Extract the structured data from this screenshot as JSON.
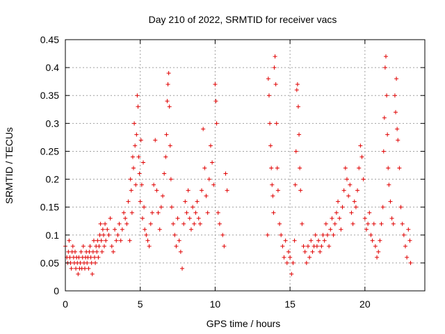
{
  "chart_data": {
    "type": "scatter",
    "title": "Day 210 of 2022, SRMTID for receiver vacs",
    "xlabel": "GPS time / hours",
    "ylabel": "SRMTID / TECUs",
    "xlim": [
      0,
      24
    ],
    "ylim": [
      0,
      0.45
    ],
    "xticks": [
      0,
      5,
      10,
      15,
      20
    ],
    "yticks": [
      0,
      0.05,
      0.1,
      0.15,
      0.2,
      0.25,
      0.3,
      0.35,
      0.4,
      0.45
    ],
    "grid": true,
    "marker": "+",
    "color": "#e00000",
    "series": [
      {
        "name": "SRMTID",
        "points": [
          [
            0.0,
            0.08
          ],
          [
            0.1,
            0.06
          ],
          [
            0.15,
            0.05
          ],
          [
            0.2,
            0.07
          ],
          [
            0.25,
            0.09
          ],
          [
            0.3,
            0.06
          ],
          [
            0.35,
            0.05
          ],
          [
            0.4,
            0.04
          ],
          [
            0.45,
            0.07
          ],
          [
            0.5,
            0.08
          ],
          [
            0.55,
            0.06
          ],
          [
            0.6,
            0.05
          ],
          [
            0.65,
            0.07
          ],
          [
            0.7,
            0.04
          ],
          [
            0.75,
            0.06
          ],
          [
            0.8,
            0.05
          ],
          [
            0.85,
            0.03
          ],
          [
            0.9,
            0.06
          ],
          [
            0.95,
            0.04
          ],
          [
            1.0,
            0.05
          ],
          [
            1.05,
            0.07
          ],
          [
            1.1,
            0.04
          ],
          [
            1.15,
            0.06
          ],
          [
            1.2,
            0.08
          ],
          [
            1.25,
            0.05
          ],
          [
            1.3,
            0.04
          ],
          [
            1.35,
            0.06
          ],
          [
            1.4,
            0.07
          ],
          [
            1.45,
            0.05
          ],
          [
            1.5,
            0.06
          ],
          [
            1.55,
            0.04
          ],
          [
            1.6,
            0.07
          ],
          [
            1.65,
            0.08
          ],
          [
            1.7,
            0.06
          ],
          [
            1.75,
            0.05
          ],
          [
            1.8,
            0.03
          ],
          [
            1.85,
            0.07
          ],
          [
            1.9,
            0.09
          ],
          [
            1.95,
            0.06
          ],
          [
            2.0,
            0.05
          ],
          [
            2.05,
            0.08
          ],
          [
            2.1,
            0.07
          ],
          [
            2.15,
            0.09
          ],
          [
            2.2,
            0.06
          ],
          [
            2.25,
            0.08
          ],
          [
            2.3,
            0.1
          ],
          [
            2.35,
            0.12
          ],
          [
            2.4,
            0.09
          ],
          [
            2.45,
            0.07
          ],
          [
            2.5,
            0.11
          ],
          [
            2.55,
            0.1
          ],
          [
            2.6,
            0.08
          ],
          [
            2.65,
            0.12
          ],
          [
            2.7,
            0.09
          ],
          [
            2.8,
            0.11
          ],
          [
            2.9,
            0.1
          ],
          [
            3.0,
            0.13
          ],
          [
            3.1,
            0.08
          ],
          [
            3.2,
            0.07
          ],
          [
            3.3,
            0.11
          ],
          [
            3.4,
            0.09
          ],
          [
            3.5,
            0.1
          ],
          [
            3.6,
            0.12
          ],
          [
            3.7,
            0.09
          ],
          [
            3.8,
            0.11
          ],
          [
            3.9,
            0.14
          ],
          [
            4.0,
            0.13
          ],
          [
            4.1,
            0.12
          ],
          [
            4.2,
            0.16
          ],
          [
            4.3,
            0.09
          ],
          [
            4.35,
            0.2
          ],
          [
            4.4,
            0.18
          ],
          [
            4.45,
            0.14
          ],
          [
            4.5,
            0.24
          ],
          [
            4.55,
            0.22
          ],
          [
            4.6,
            0.3
          ],
          [
            4.65,
            0.26
          ],
          [
            4.7,
            0.19
          ],
          [
            4.75,
            0.28
          ],
          [
            4.8,
            0.35
          ],
          [
            4.85,
            0.33
          ],
          [
            4.9,
            0.24
          ],
          [
            4.95,
            0.21
          ],
          [
            5.0,
            0.16
          ],
          [
            5.05,
            0.27
          ],
          [
            5.1,
            0.19
          ],
          [
            5.15,
            0.13
          ],
          [
            5.2,
            0.23
          ],
          [
            5.25,
            0.15
          ],
          [
            5.3,
            0.11
          ],
          [
            5.4,
            0.1
          ],
          [
            5.5,
            0.09
          ],
          [
            5.6,
            0.08
          ],
          [
            5.7,
            0.12
          ],
          [
            5.8,
            0.14
          ],
          [
            5.9,
            0.19
          ],
          [
            6.0,
            0.27
          ],
          [
            6.1,
            0.18
          ],
          [
            6.2,
            0.14
          ],
          [
            6.3,
            0.11
          ],
          [
            6.4,
            0.15
          ],
          [
            6.5,
            0.17
          ],
          [
            6.6,
            0.21
          ],
          [
            6.7,
            0.24
          ],
          [
            6.75,
            0.28
          ],
          [
            6.8,
            0.34
          ],
          [
            6.85,
            0.37
          ],
          [
            6.9,
            0.39
          ],
          [
            6.95,
            0.33
          ],
          [
            7.0,
            0.26
          ],
          [
            7.05,
            0.2
          ],
          [
            7.1,
            0.15
          ],
          [
            7.2,
            0.12
          ],
          [
            7.3,
            0.1
          ],
          [
            7.4,
            0.08
          ],
          [
            7.5,
            0.13
          ],
          [
            7.6,
            0.09
          ],
          [
            7.7,
            0.07
          ],
          [
            7.8,
            0.04
          ],
          [
            7.9,
            0.12
          ],
          [
            8.0,
            0.16
          ],
          [
            8.1,
            0.14
          ],
          [
            8.2,
            0.18
          ],
          [
            8.3,
            0.13
          ],
          [
            8.4,
            0.11
          ],
          [
            8.5,
            0.15
          ],
          [
            8.6,
            0.12
          ],
          [
            8.7,
            0.14
          ],
          [
            8.8,
            0.16
          ],
          [
            8.9,
            0.13
          ],
          [
            9.0,
            0.12
          ],
          [
            9.1,
            0.18
          ],
          [
            9.2,
            0.29
          ],
          [
            9.3,
            0.22
          ],
          [
            9.4,
            0.17
          ],
          [
            9.5,
            0.14
          ],
          [
            9.6,
            0.2
          ],
          [
            9.7,
            0.26
          ],
          [
            9.8,
            0.23
          ],
          [
            9.9,
            0.19
          ],
          [
            10.0,
            0.37
          ],
          [
            10.05,
            0.34
          ],
          [
            10.1,
            0.3
          ],
          [
            10.2,
            0.14
          ],
          [
            10.3,
            0.12
          ],
          [
            10.5,
            0.1
          ],
          [
            10.6,
            0.08
          ],
          [
            10.7,
            0.21
          ],
          [
            10.8,
            0.18
          ],
          [
            13.5,
            0.1
          ],
          [
            13.55,
            0.38
          ],
          [
            13.6,
            0.35
          ],
          [
            13.65,
            0.3
          ],
          [
            13.7,
            0.26
          ],
          [
            13.75,
            0.22
          ],
          [
            13.8,
            0.19
          ],
          [
            13.85,
            0.17
          ],
          [
            13.9,
            0.14
          ],
          [
            13.95,
            0.4
          ],
          [
            14.0,
            0.42
          ],
          [
            14.05,
            0.37
          ],
          [
            14.1,
            0.3
          ],
          [
            14.15,
            0.22
          ],
          [
            14.2,
            0.18
          ],
          [
            14.3,
            0.12
          ],
          [
            14.4,
            0.1
          ],
          [
            14.5,
            0.08
          ],
          [
            14.6,
            0.06
          ],
          [
            14.7,
            0.09
          ],
          [
            14.8,
            0.05
          ],
          [
            14.9,
            0.07
          ],
          [
            15.0,
            0.06
          ],
          [
            15.1,
            0.03
          ],
          [
            15.2,
            0.05
          ],
          [
            15.3,
            0.09
          ],
          [
            15.35,
            0.19
          ],
          [
            15.4,
            0.25
          ],
          [
            15.45,
            0.36
          ],
          [
            15.5,
            0.37
          ],
          [
            15.55,
            0.33
          ],
          [
            15.6,
            0.28
          ],
          [
            15.65,
            0.22
          ],
          [
            15.7,
            0.18
          ],
          [
            15.8,
            0.12
          ],
          [
            15.9,
            0.08
          ],
          [
            16.0,
            0.07
          ],
          [
            16.1,
            0.05
          ],
          [
            16.2,
            0.08
          ],
          [
            16.3,
            0.06
          ],
          [
            16.4,
            0.09
          ],
          [
            16.5,
            0.07
          ],
          [
            16.6,
            0.08
          ],
          [
            16.7,
            0.1
          ],
          [
            16.8,
            0.08
          ],
          [
            16.9,
            0.09
          ],
          [
            17.0,
            0.07
          ],
          [
            17.1,
            0.08
          ],
          [
            17.2,
            0.1
          ],
          [
            17.3,
            0.09
          ],
          [
            17.4,
            0.12
          ],
          [
            17.5,
            0.1
          ],
          [
            17.6,
            0.08
          ],
          [
            17.7,
            0.11
          ],
          [
            17.8,
            0.13
          ],
          [
            17.9,
            0.1
          ],
          [
            18.0,
            0.12
          ],
          [
            18.1,
            0.14
          ],
          [
            18.2,
            0.16
          ],
          [
            18.3,
            0.13
          ],
          [
            18.4,
            0.11
          ],
          [
            18.5,
            0.15
          ],
          [
            18.6,
            0.18
          ],
          [
            18.7,
            0.22
          ],
          [
            18.8,
            0.2
          ],
          [
            18.9,
            0.17
          ],
          [
            19.0,
            0.19
          ],
          [
            19.1,
            0.14
          ],
          [
            19.2,
            0.12
          ],
          [
            19.3,
            0.16
          ],
          [
            19.4,
            0.15
          ],
          [
            19.5,
            0.18
          ],
          [
            19.6,
            0.22
          ],
          [
            19.7,
            0.26
          ],
          [
            19.8,
            0.24
          ],
          [
            19.9,
            0.2
          ],
          [
            20.0,
            0.13
          ],
          [
            20.1,
            0.11
          ],
          [
            20.2,
            0.12
          ],
          [
            20.3,
            0.14
          ],
          [
            20.4,
            0.1
          ],
          [
            20.5,
            0.09
          ],
          [
            20.6,
            0.12
          ],
          [
            20.7,
            0.08
          ],
          [
            20.8,
            0.06
          ],
          [
            20.9,
            0.07
          ],
          [
            21.0,
            0.09
          ],
          [
            21.1,
            0.12
          ],
          [
            21.2,
            0.15
          ],
          [
            21.25,
            0.25
          ],
          [
            21.3,
            0.31
          ],
          [
            21.35,
            0.4
          ],
          [
            21.4,
            0.42
          ],
          [
            21.45,
            0.35
          ],
          [
            21.5,
            0.28
          ],
          [
            21.55,
            0.22
          ],
          [
            21.6,
            0.19
          ],
          [
            21.7,
            0.16
          ],
          [
            21.8,
            0.13
          ],
          [
            21.9,
            0.12
          ],
          [
            22.0,
            0.35
          ],
          [
            22.05,
            0.32
          ],
          [
            22.1,
            0.38
          ],
          [
            22.15,
            0.29
          ],
          [
            22.2,
            0.27
          ],
          [
            22.3,
            0.22
          ],
          [
            22.4,
            0.15
          ],
          [
            22.5,
            0.12
          ],
          [
            22.6,
            0.1
          ],
          [
            22.7,
            0.08
          ],
          [
            22.8,
            0.06
          ],
          [
            22.9,
            0.11
          ],
          [
            23.0,
            0.09
          ],
          [
            23.05,
            0.05
          ]
        ]
      }
    ]
  }
}
